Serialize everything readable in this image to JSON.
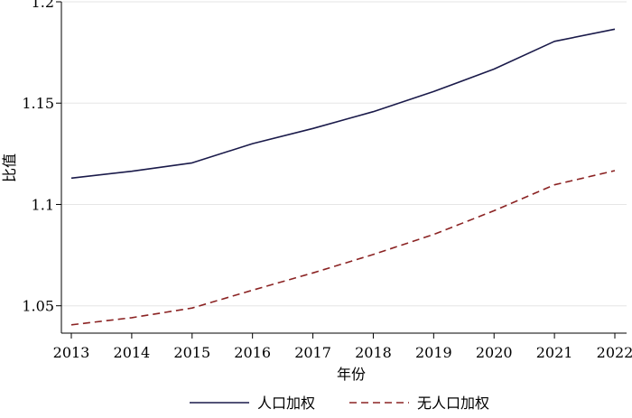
{
  "chart_data": {
    "type": "line",
    "title": "",
    "xlabel": "年份",
    "ylabel": "比值",
    "x": [
      2013,
      2014,
      2015,
      2016,
      2017,
      2018,
      2019,
      2020,
      2021,
      2022
    ],
    "x_ticks": [
      "2013",
      "2014",
      "2015",
      "2016",
      "2017",
      "2018",
      "2019",
      "2020",
      "2021",
      "2022"
    ],
    "ylim": [
      1.0365,
      1.2
    ],
    "y_ticks": [
      {
        "value": 1.05,
        "label": "1.05"
      },
      {
        "value": 1.1,
        "label": "1.1"
      },
      {
        "value": 1.15,
        "label": "1.15"
      },
      {
        "value": 1.2,
        "label": "1.2"
      }
    ],
    "grid": "horizontal",
    "legend_position": "bottom",
    "series": [
      {
        "name": "人口加权",
        "style": "solid",
        "color": "#1a1a4a",
        "values": [
          1.113,
          1.1164,
          1.1205,
          1.13,
          1.1375,
          1.1458,
          1.1557,
          1.1668,
          1.1805,
          1.1865
        ]
      },
      {
        "name": "无人口加权",
        "style": "dashed",
        "color": "#8b2323",
        "values": [
          1.0406,
          1.0441,
          1.0489,
          1.0577,
          1.0662,
          1.0753,
          1.0852,
          1.0969,
          1.1097,
          1.1167
        ]
      }
    ]
  }
}
